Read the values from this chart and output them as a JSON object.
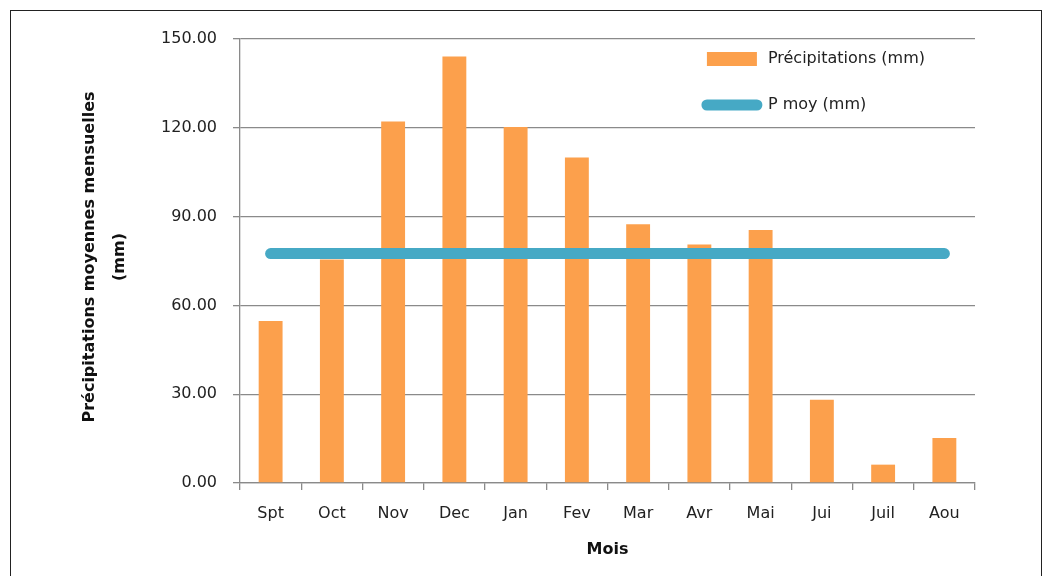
{
  "chart_data": {
    "type": "bar",
    "categories": [
      "Spt",
      "Oct",
      "Nov",
      "Dec",
      "Jan",
      "Fev",
      "Mar",
      "Avr",
      "Mai",
      "Jui",
      "Juil",
      "Aou"
    ],
    "series": [
      {
        "name": "Précipitations (mm)",
        "color": "#fca04c",
        "values": [
          54.7,
          75.5,
          122.1,
          144.1,
          120.3,
          110.0,
          87.4,
          80.6,
          85.5,
          28.1,
          6.2,
          15.2
        ]
      },
      {
        "name": "P moy (mm)",
        "type": "line",
        "color": "#46a9c5",
        "values": [
          77.5,
          77.5,
          77.5,
          77.5,
          77.5,
          77.5,
          77.5,
          77.5,
          77.5,
          77.5,
          77.5,
          77.5
        ]
      }
    ],
    "xlabel": "Mois",
    "ylabel": "Précipitations moyennes mensuelles (mm)",
    "ylim": [
      0,
      150
    ],
    "yticks": [
      {
        "value": 0,
        "label": "0.00"
      },
      {
        "value": 30,
        "label": "30.00"
      },
      {
        "value": 60,
        "label": "60.00"
      },
      {
        "value": 90,
        "label": "90.00"
      },
      {
        "value": 120,
        "label": "120.00"
      },
      {
        "value": 150,
        "label": "150.00"
      }
    ],
    "grid": "y",
    "legend": "top right"
  }
}
